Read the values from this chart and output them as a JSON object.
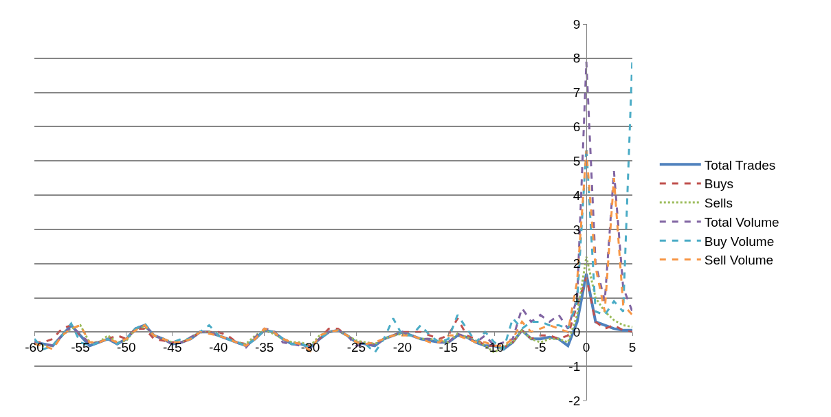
{
  "chart_data": {
    "type": "line",
    "x": [
      -60,
      -59,
      -58,
      -57,
      -56,
      -55,
      -54,
      -53,
      -52,
      -51,
      -50,
      -49,
      -48,
      -47,
      -46,
      -45,
      -44,
      -43,
      -42,
      -41,
      -40,
      -39,
      -38,
      -37,
      -36,
      -35,
      -34,
      -33,
      -32,
      -31,
      -30,
      -29,
      -28,
      -27,
      -26,
      -25,
      -24,
      -23,
      -22,
      -21,
      -20,
      -19,
      -18,
      -17,
      -16,
      -15,
      -14,
      -13,
      -12,
      -11,
      -10,
      -9,
      -8,
      -7,
      -6,
      -5,
      -4,
      -3,
      -2,
      -1,
      0,
      1,
      2,
      3,
      4,
      5
    ],
    "series": [
      {
        "name": "Total Trades",
        "color": "#4f81bd",
        "line_style": "solid",
        "values": [
          -0.3,
          -0.35,
          -0.4,
          -0.1,
          0.2,
          -0.1,
          -0.4,
          -0.3,
          -0.2,
          -0.35,
          -0.2,
          0.1,
          0.2,
          -0.1,
          -0.2,
          -0.35,
          -0.3,
          -0.2,
          0,
          0,
          -0.1,
          -0.2,
          -0.3,
          -0.4,
          -0.2,
          0.05,
          0,
          -0.2,
          -0.35,
          -0.35,
          -0.45,
          -0.2,
          0,
          0.05,
          -0.1,
          -0.3,
          -0.35,
          -0.4,
          -0.2,
          -0.1,
          0,
          -0.1,
          -0.2,
          -0.25,
          -0.3,
          -0.3,
          -0.1,
          -0.15,
          -0.3,
          -0.4,
          -0.4,
          -0.5,
          -0.3,
          0.05,
          -0.2,
          -0.2,
          -0.15,
          -0.2,
          -0.4,
          0.3,
          1.7,
          0.3,
          0.2,
          0.1,
          0.05,
          0.05
        ]
      },
      {
        "name": "Buys",
        "color": "#c0504d",
        "line_style": "dashed",
        "values": [
          -0.3,
          -0.3,
          -0.2,
          0.1,
          0.2,
          -0.1,
          -0.3,
          -0.3,
          -0.2,
          -0.1,
          -0.2,
          0.1,
          0.1,
          -0.2,
          -0.25,
          -0.3,
          -0.3,
          -0.2,
          0,
          0,
          0,
          -0.1,
          -0.3,
          -0.35,
          -0.2,
          0.05,
          0,
          -0.2,
          -0.3,
          -0.35,
          -0.4,
          -0.2,
          0.1,
          0.1,
          -0.1,
          -0.3,
          -0.3,
          -0.35,
          -0.2,
          -0.1,
          0,
          0,
          0,
          -0.1,
          -0.2,
          -0.1,
          0.4,
          -0.1,
          -0.2,
          -0.4,
          -0.4,
          -0.45,
          -0.3,
          0.05,
          -0.2,
          -0.1,
          -0.1,
          -0.2,
          -0.1,
          0.8,
          1.6,
          0.3,
          0.1,
          0.2,
          0.05,
          0.0
        ]
      },
      {
        "name": "Sells",
        "color": "#9bbb59",
        "line_style": "dotted",
        "values": [
          -0.3,
          -0.4,
          -0.4,
          -0.1,
          0.1,
          0.2,
          -0.3,
          -0.3,
          -0.1,
          -0.3,
          -0.25,
          0.1,
          0.15,
          -0.1,
          -0.2,
          -0.3,
          -0.3,
          -0.15,
          0,
          0,
          -0.1,
          -0.2,
          -0.3,
          -0.35,
          -0.1,
          0.05,
          -0.05,
          -0.2,
          -0.3,
          -0.3,
          -0.4,
          -0.1,
          0,
          0.05,
          -0.1,
          -0.25,
          -0.3,
          -0.35,
          -0.2,
          -0.1,
          -0.05,
          -0.1,
          -0.2,
          -0.2,
          -0.25,
          -0.3,
          -0.05,
          -0.15,
          -0.25,
          -0.4,
          -0.6,
          -0.4,
          -0.3,
          0.05,
          -0.2,
          -0.3,
          -0.2,
          -0.2,
          -0.3,
          0.5,
          2.2,
          1.0,
          0.6,
          0.35,
          0.2,
          0.15
        ]
      },
      {
        "name": "Total Volume",
        "color": "#8064a2",
        "line_style": "dashed",
        "values": [
          -0.3,
          -0.35,
          -0.4,
          -0.1,
          0.15,
          -0.05,
          -0.35,
          -0.3,
          -0.2,
          -0.35,
          -0.2,
          0.1,
          0.2,
          -0.1,
          -0.2,
          -0.35,
          -0.3,
          -0.15,
          0,
          0,
          -0.1,
          -0.2,
          -0.3,
          -0.45,
          -0.15,
          0.1,
          0.05,
          -0.3,
          -0.35,
          -0.4,
          -0.45,
          -0.2,
          0,
          0.05,
          -0.1,
          -0.4,
          -0.35,
          -0.4,
          -0.2,
          -0.1,
          0,
          -0.1,
          -0.2,
          -0.2,
          -0.3,
          -0.3,
          -0.05,
          -0.15,
          -0.3,
          -0.1,
          -0.4,
          -0.3,
          -0.2,
          0.7,
          0.3,
          0.5,
          0.3,
          0.5,
          0.1,
          1.0,
          7.9,
          2.0,
          0.9,
          4.7,
          1.3,
          0.6
        ]
      },
      {
        "name": "Buy Volume",
        "color": "#4bacc6",
        "line_style": "dashed",
        "values": [
          -0.2,
          -0.5,
          -0.4,
          -0.1,
          0.25,
          -0.3,
          -0.4,
          -0.3,
          -0.2,
          -0.35,
          -0.2,
          0.1,
          0.25,
          -0.1,
          -0.2,
          -0.3,
          -0.2,
          -0.2,
          0,
          0.2,
          -0.1,
          -0.2,
          -0.3,
          -0.4,
          -0.2,
          0.05,
          0,
          -0.2,
          -0.35,
          -0.35,
          -0.45,
          -0.2,
          0,
          0.05,
          -0.1,
          -0.3,
          -0.35,
          -0.6,
          -0.2,
          0.4,
          -0.1,
          -0.1,
          0.2,
          -0.1,
          -0.3,
          -0.2,
          0.5,
          0.1,
          -0.3,
          0.0,
          -0.3,
          -0.5,
          0.4,
          0.1,
          0.3,
          0.3,
          0.2,
          0.2,
          0.1,
          0.9,
          5.4,
          0.6,
          0.5,
          0.9,
          0.6,
          8.0
        ]
      },
      {
        "name": "Sell Volume",
        "color": "#f79646",
        "line_style": "dashed",
        "values": [
          -0.35,
          -0.4,
          -0.5,
          -0.1,
          0.1,
          0.2,
          -0.3,
          -0.3,
          -0.2,
          -0.3,
          -0.2,
          0.05,
          0.2,
          -0.1,
          -0.2,
          -0.3,
          -0.3,
          -0.2,
          0,
          -0.05,
          -0.1,
          -0.2,
          -0.3,
          -0.4,
          -0.2,
          0.1,
          0,
          -0.2,
          -0.3,
          -0.35,
          -0.55,
          -0.1,
          0,
          0.05,
          -0.1,
          -0.3,
          -0.35,
          -0.3,
          -0.2,
          -0.1,
          -0.1,
          -0.1,
          -0.2,
          -0.3,
          -0.3,
          -0.1,
          -0.1,
          -0.2,
          -0.3,
          -0.3,
          -0.4,
          -0.4,
          -0.2,
          0.3,
          0,
          0.1,
          0.2,
          0.1,
          0,
          1.5,
          5.3,
          1.9,
          0.6,
          4.5,
          0.8,
          0.5
        ]
      }
    ],
    "xlim": [
      -60,
      5
    ],
    "xticks": [
      -60,
      -55,
      -50,
      -45,
      -40,
      -35,
      -30,
      -25,
      -20,
      -15,
      -10,
      -5,
      0,
      5
    ],
    "ylim": [
      -2,
      9
    ],
    "yticks": [
      -2,
      -1,
      0,
      1,
      2,
      3,
      4,
      5,
      6,
      7,
      8,
      9
    ],
    "grid": "y",
    "legend": "right",
    "marker": "none"
  }
}
